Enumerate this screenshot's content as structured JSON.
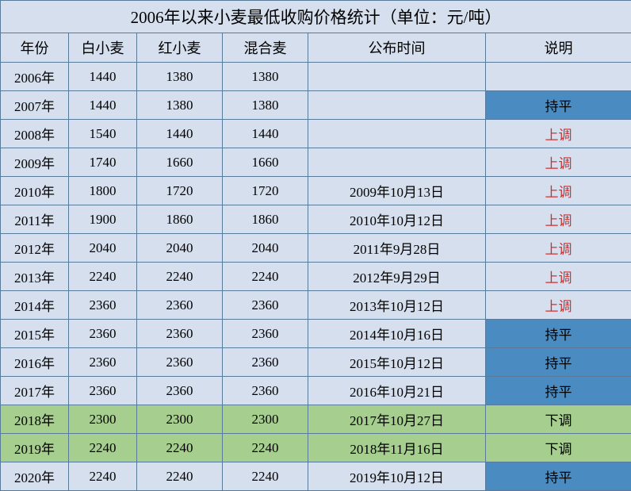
{
  "title": "2006年以来小麦最低收购价格统计（单位：元/吨）",
  "columns": [
    "年份",
    "白小麦",
    "红小麦",
    "混合麦",
    "公布时间",
    "说明"
  ],
  "col_widths": [
    "col-year",
    "col-white",
    "col-red",
    "col-mix",
    "col-date",
    "col-note"
  ],
  "rows": [
    {
      "y": "2006年",
      "w": "1440",
      "r": "1380",
      "m": "1380",
      "d": "",
      "n": "",
      "bg": "row-blue",
      "nc": ""
    },
    {
      "y": "2007年",
      "w": "1440",
      "r": "1380",
      "m": "1380",
      "d": "",
      "n": "持平",
      "bg": "row-blue",
      "nc": "cell-blue"
    },
    {
      "y": "2008年",
      "w": "1540",
      "r": "1440",
      "m": "1440",
      "d": "",
      "n": "上调",
      "bg": "row-blue",
      "nc": "txt-red"
    },
    {
      "y": "2009年",
      "w": "1740",
      "r": "1660",
      "m": "1660",
      "d": "",
      "n": "上调",
      "bg": "row-blue",
      "nc": "txt-red"
    },
    {
      "y": "2010年",
      "w": "1800",
      "r": "1720",
      "m": "1720",
      "d": "2009年10月13日",
      "n": "上调",
      "bg": "row-blue",
      "nc": "txt-red"
    },
    {
      "y": "2011年",
      "w": "1900",
      "r": "1860",
      "m": "1860",
      "d": "2010年10月12日",
      "n": "上调",
      "bg": "row-blue",
      "nc": "txt-red"
    },
    {
      "y": "2012年",
      "w": "2040",
      "r": "2040",
      "m": "2040",
      "d": "2011年9月28日",
      "n": "上调",
      "bg": "row-blue",
      "nc": "txt-red"
    },
    {
      "y": "2013年",
      "w": "2240",
      "r": "2240",
      "m": "2240",
      "d": "2012年9月29日",
      "n": "上调",
      "bg": "row-blue",
      "nc": "txt-red"
    },
    {
      "y": "2014年",
      "w": "2360",
      "r": "2360",
      "m": "2360",
      "d": "2013年10月12日",
      "n": "上调",
      "bg": "row-blue",
      "nc": "txt-red"
    },
    {
      "y": "2015年",
      "w": "2360",
      "r": "2360",
      "m": "2360",
      "d": "2014年10月16日",
      "n": "持平",
      "bg": "row-blue",
      "nc": "cell-blue"
    },
    {
      "y": "2016年",
      "w": "2360",
      "r": "2360",
      "m": "2360",
      "d": "2015年10月12日",
      "n": "持平",
      "bg": "row-blue",
      "nc": "cell-blue"
    },
    {
      "y": "2017年",
      "w": "2360",
      "r": "2360",
      "m": "2360",
      "d": "2016年10月21日",
      "n": "持平",
      "bg": "row-blue",
      "nc": "cell-blue"
    },
    {
      "y": "2018年",
      "w": "2300",
      "r": "2300",
      "m": "2300",
      "d": "2017年10月27日",
      "n": "下调",
      "bg": "row-green",
      "nc": ""
    },
    {
      "y": "2019年",
      "w": "2240",
      "r": "2240",
      "m": "2240",
      "d": "2018年11月16日",
      "n": "下调",
      "bg": "row-green",
      "nc": ""
    },
    {
      "y": "2020年",
      "w": "2240",
      "r": "2240",
      "m": "2240",
      "d": "2019年10月12日",
      "n": "持平",
      "bg": "row-blue",
      "nc": "cell-blue"
    }
  ],
  "colors": {
    "border": "#5a7a9a",
    "row_blue": "#d5dfed",
    "row_green": "#a6ce8f",
    "cell_blue": "#4a8bc2",
    "text_red": "#d03030"
  }
}
